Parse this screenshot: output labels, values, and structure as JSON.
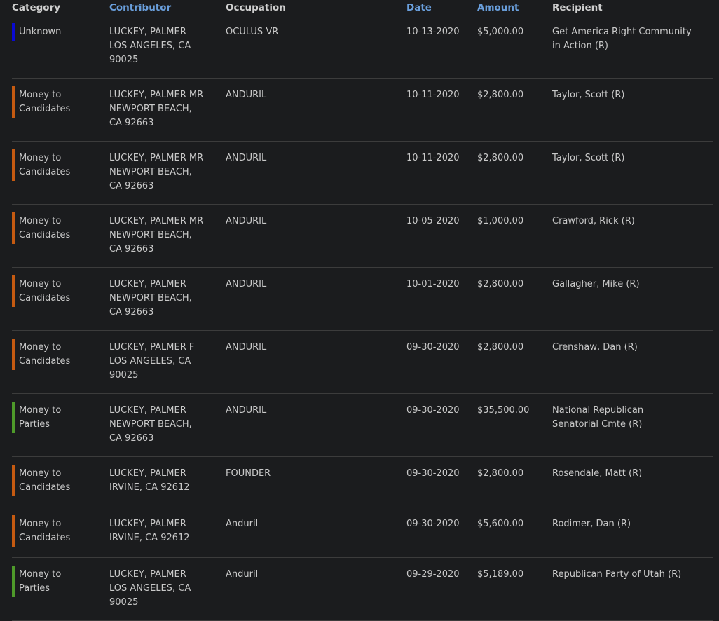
{
  "colors": {
    "unknown": "#0a0ad2",
    "candidates": "#c55a11",
    "parties": "#4e9a2a",
    "sort_header": "#6a9fdc"
  },
  "headers": {
    "category": "Category",
    "contributor": "Contributor",
    "occupation": "Occupation",
    "date": "Date",
    "amount": "Amount",
    "recipient": "Recipient"
  },
  "rows": [
    {
      "category": "Unknown",
      "type": "unknown",
      "name": "LUCKEY, PALMER",
      "address": [
        "LOS ANGELES, CA",
        "90025"
      ],
      "occupation": "OCULUS VR",
      "date": "10-13-2020",
      "amount": "$5,000.00",
      "recipient": "Get America Right Community in Action (R)"
    },
    {
      "category": "Money to Candidates",
      "type": "candidates",
      "name": "LUCKEY, PALMER MR",
      "address": [
        "NEWPORT BEACH,",
        "CA 92663"
      ],
      "occupation": "ANDURIL",
      "date": "10-11-2020",
      "amount": "$2,800.00",
      "recipient": "Taylor, Scott (R)"
    },
    {
      "category": "Money to Candidates",
      "type": "candidates",
      "name": "LUCKEY, PALMER MR",
      "address": [
        "NEWPORT BEACH,",
        "CA 92663"
      ],
      "occupation": "ANDURIL",
      "date": "10-11-2020",
      "amount": "$2,800.00",
      "recipient": "Taylor, Scott (R)"
    },
    {
      "category": "Money to Candidates",
      "type": "candidates",
      "name": "LUCKEY, PALMER MR",
      "address": [
        "NEWPORT BEACH,",
        "CA 92663"
      ],
      "occupation": "ANDURIL",
      "date": "10-05-2020",
      "amount": "$1,000.00",
      "recipient": "Crawford, Rick (R)"
    },
    {
      "category": "Money to Candidates",
      "type": "candidates",
      "name": "LUCKEY, PALMER",
      "address": [
        "NEWPORT BEACH,",
        "CA 92663"
      ],
      "occupation": "ANDURIL",
      "date": "10-01-2020",
      "amount": "$2,800.00",
      "recipient": "Gallagher, Mike (R)"
    },
    {
      "category": "Money to Candidates",
      "type": "candidates",
      "name": "LUCKEY, PALMER F",
      "address": [
        "LOS ANGELES, CA",
        "90025"
      ],
      "occupation": "ANDURIL",
      "date": "09-30-2020",
      "amount": "$2,800.00",
      "recipient": "Crenshaw, Dan (R)"
    },
    {
      "category": "Money to Parties",
      "type": "parties",
      "name": "LUCKEY, PALMER",
      "address": [
        "NEWPORT BEACH,",
        "CA 92663"
      ],
      "occupation": "ANDURIL",
      "date": "09-30-2020",
      "amount": "$35,500.00",
      "recipient": "National Republican Senatorial Cmte (R)"
    },
    {
      "category": "Money to Candidates",
      "type": "candidates",
      "name": "LUCKEY, PALMER",
      "address": [
        "IRVINE, CA 92612"
      ],
      "occupation": "FOUNDER",
      "date": "09-30-2020",
      "amount": "$2,800.00",
      "recipient": "Rosendale, Matt (R)"
    },
    {
      "category": "Money to Candidates",
      "type": "candidates",
      "name": "LUCKEY, PALMER",
      "address": [
        "IRVINE, CA 92612"
      ],
      "occupation": "Anduril",
      "date": "09-30-2020",
      "amount": "$5,600.00",
      "recipient": "Rodimer, Dan (R)"
    },
    {
      "category": "Money to Parties",
      "type": "parties",
      "name": "LUCKEY, PALMER",
      "address": [
        "LOS ANGELES, CA",
        "90025"
      ],
      "occupation": "Anduril",
      "date": "09-29-2020",
      "amount": "$5,189.00",
      "recipient": "Republican Party of Utah (R)"
    }
  ]
}
